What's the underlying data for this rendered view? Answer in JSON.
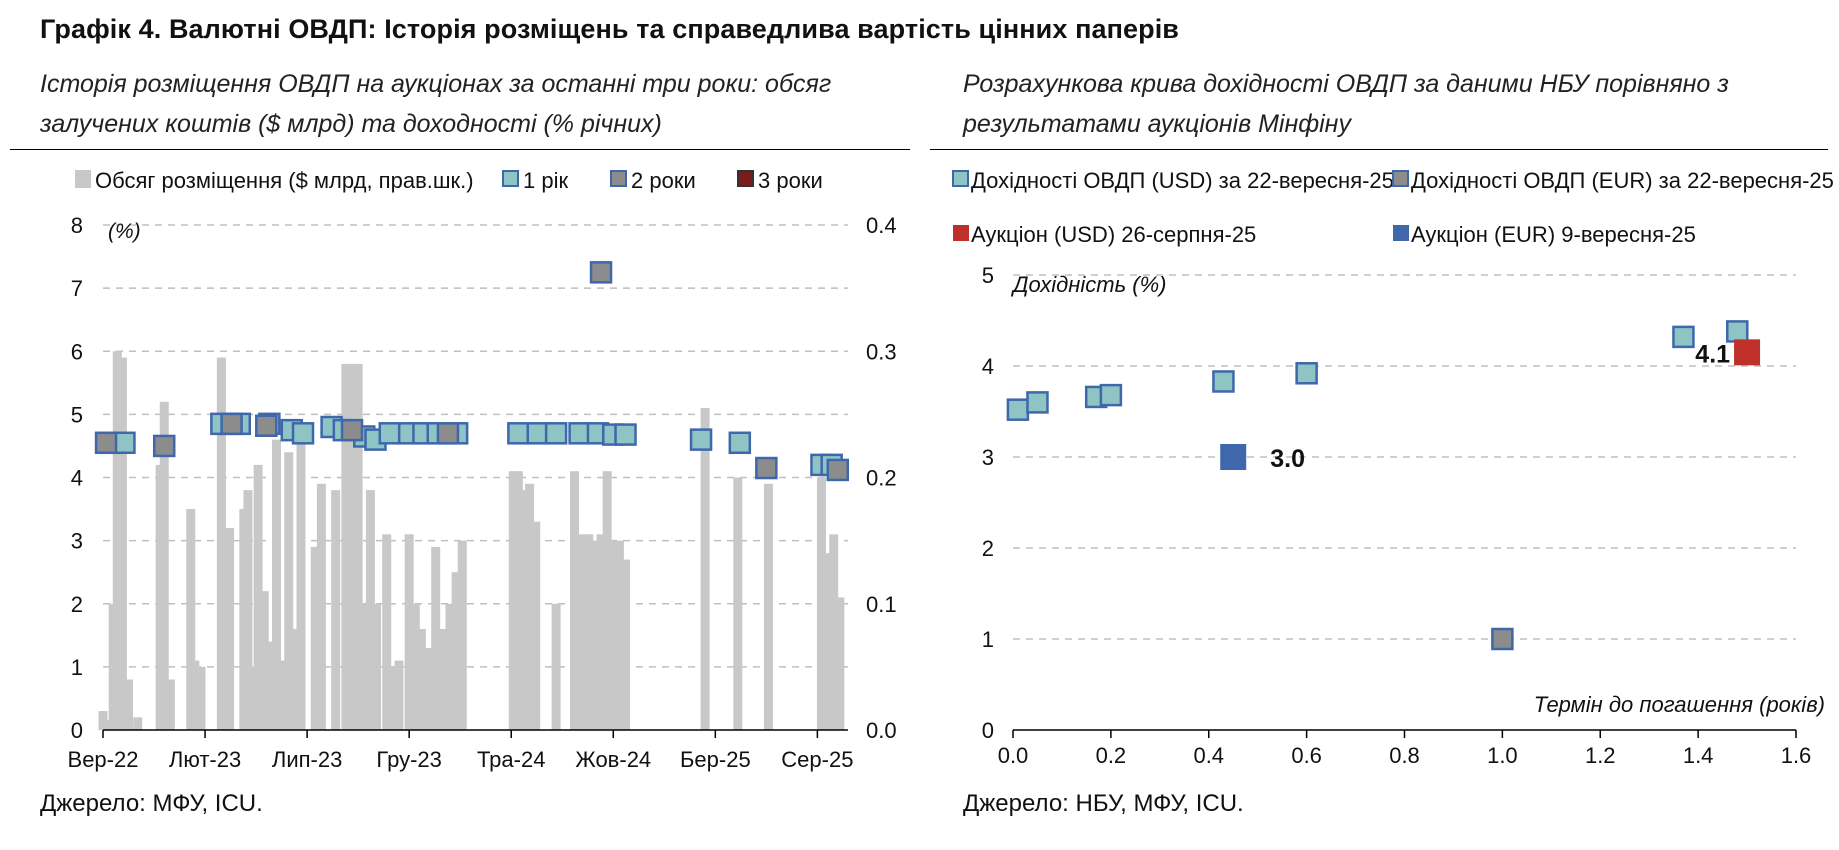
{
  "title": "Графік 4. Валютні ОВДП: Історія розміщень та справедлива вартість цінних паперів",
  "left": {
    "subtitle": "Історія розміщення ОВДП на аукціонах за останні три роки: обсяг залучених коштів ($ млрд) та доходності (% річних)",
    "source": "Джерело: МФУ, ICU.",
    "y_unit_label": "(%)"
  },
  "right": {
    "subtitle": "Розрахункова крива дохідності ОВДП за даними НБУ порівняно з результатами аукціонів Мінфіну",
    "source": "Джерело: НБУ, МФУ, ICU."
  },
  "colors": {
    "bar": "#c8c8c8",
    "usd_fill": "#8fc4c4",
    "eur_fill": "#8c8c8c",
    "marker_edge": "#3f67ab",
    "three_year_fill": "#7a1c1c",
    "auction_usd": "#c0302a",
    "auction_eur": "#3f67ab",
    "grid": "#bfbfbf"
  },
  "chart_data": [
    {
      "type": "bar+scatter",
      "xlabel": "",
      "ylabel": "(%)",
      "ylim": [
        0,
        8
      ],
      "y2lim": [
        0,
        0.4
      ],
      "yticks": [
        0,
        1,
        2,
        3,
        4,
        5,
        6,
        7,
        8
      ],
      "y2ticks": [
        "0.0",
        "0.1",
        "0.2",
        "0.3",
        "0.4"
      ],
      "xlim": [
        0,
        36.5
      ],
      "xtick_labels": [
        {
          "label": "Вер-22",
          "x": 0
        },
        {
          "label": "Лют-23",
          "x": 5
        },
        {
          "label": "Лип-23",
          "x": 10
        },
        {
          "label": "Гру-23",
          "x": 15
        },
        {
          "label": "Тра-24",
          "x": 20
        },
        {
          "label": "Жов-24",
          "x": 25
        },
        {
          "label": "Бер-25",
          "x": 30
        },
        {
          "label": "Сер-25",
          "x": 35
        }
      ],
      "grid": true,
      "legend_position": "top",
      "legend": [
        {
          "label": "Обсяг розміщення ($ млрд, прав.шк.)",
          "kind": "bar"
        },
        {
          "label": "1 рік",
          "kind": "usd"
        },
        {
          "label": "2 роки",
          "kind": "eur"
        },
        {
          "label": "3 роки",
          "kind": "three"
        }
      ],
      "bars": {
        "name": "Обсяг розміщення ($ млрд, прав.шк.)",
        "x": [
          0.0,
          0.2,
          0.5,
          0.7,
          0.95,
          1.25,
          1.7,
          2.8,
          3.0,
          3.3,
          4.3,
          4.5,
          4.8,
          5.8,
          6.0,
          6.2,
          6.9,
          7.1,
          7.3,
          7.6,
          7.9,
          8.1,
          8.5,
          8.8,
          9.1,
          9.4,
          9.7,
          10.4,
          10.7,
          11.4,
          11.9,
          12.2,
          12.5,
          12.8,
          13.1,
          13.4,
          13.9,
          14.2,
          14.5,
          15.0,
          15.3,
          15.6,
          15.9,
          16.3,
          16.6,
          17.0,
          17.3,
          17.6,
          20.1,
          20.35,
          20.6,
          20.9,
          21.2,
          22.2,
          23.1,
          23.5,
          23.8,
          24.1,
          24.4,
          24.7,
          25.0,
          25.3,
          25.6,
          29.5,
          31.1,
          32.6,
          35.2,
          35.5,
          35.8,
          36.1
        ],
        "values": [
          0.015,
          0.008,
          0.1,
          0.3,
          0.295,
          0.04,
          0.01,
          0.21,
          0.26,
          0.04,
          0.175,
          0.055,
          0.05,
          0.295,
          0.025,
          0.16,
          0.175,
          0.19,
          0.05,
          0.21,
          0.11,
          0.07,
          0.23,
          0.055,
          0.22,
          0.08,
          0.23,
          0.145,
          0.195,
          0.19,
          0.29,
          0.29,
          0.29,
          0.1,
          0.19,
          0.1,
          0.155,
          0.05,
          0.055,
          0.155,
          0.1,
          0.08,
          0.065,
          0.145,
          0.08,
          0.1,
          0.125,
          0.15,
          0.205,
          0.205,
          0.19,
          0.195,
          0.165,
          0.1,
          0.205,
          0.155,
          0.155,
          0.15,
          0.155,
          0.205,
          0.15,
          0.15,
          0.135,
          0.255,
          0.2,
          0.195,
          0.2,
          0.14,
          0.155,
          0.105
        ]
      },
      "series": [
        {
          "name": "1 рік",
          "points": [
            [
              1.05,
              4.55
            ],
            [
              5.8,
              4.85
            ],
            [
              6.7,
              4.85
            ],
            [
              8.15,
              4.85
            ],
            [
              9.25,
              4.75
            ],
            [
              9.8,
              4.7
            ],
            [
              11.2,
              4.8
            ],
            [
              11.8,
              4.75
            ],
            [
              12.8,
              4.65
            ],
            [
              13.35,
              4.6
            ],
            [
              14.05,
              4.7
            ],
            [
              15.0,
              4.7
            ],
            [
              15.7,
              4.7
            ],
            [
              16.4,
              4.7
            ],
            [
              17.35,
              4.7
            ],
            [
              20.35,
              4.7
            ],
            [
              21.3,
              4.7
            ],
            [
              22.2,
              4.7
            ],
            [
              23.35,
              4.7
            ],
            [
              24.25,
              4.7
            ],
            [
              25.0,
              4.68
            ],
            [
              25.6,
              4.68
            ],
            [
              29.3,
              4.6
            ],
            [
              31.2,
              4.55
            ],
            [
              35.2,
              4.2
            ],
            [
              35.7,
              4.2
            ]
          ]
        },
        {
          "name": "2 роки",
          "points": [
            [
              0.15,
              4.55
            ],
            [
              3.0,
              4.5
            ],
            [
              6.3,
              4.85
            ],
            [
              8.0,
              4.82
            ],
            [
              12.2,
              4.75
            ],
            [
              16.9,
              4.7
            ],
            [
              24.4,
              7.25
            ],
            [
              32.5,
              4.15
            ],
            [
              36.0,
              4.12
            ]
          ]
        },
        {
          "name": "3 роки",
          "points": []
        }
      ]
    },
    {
      "type": "scatter",
      "xlabel": "Термін до погашення (років)",
      "ylabel": "Дохідність (%)",
      "xlim": [
        0.0,
        1.6
      ],
      "ylim": [
        0,
        5
      ],
      "xticks": [
        "0.0",
        "0.2",
        "0.4",
        "0.6",
        "0.8",
        "1.0",
        "1.2",
        "1.4",
        "1.6"
      ],
      "yticks": [
        0,
        1,
        2,
        3,
        4,
        5
      ],
      "grid": true,
      "legend_position": "top",
      "series": [
        {
          "name": "Дохідності ОВДП (USD) за 22-вересня-25",
          "points": [
            [
              0.01,
              3.52
            ],
            [
              0.05,
              3.6
            ],
            [
              0.17,
              3.66
            ],
            [
              0.2,
              3.68
            ],
            [
              0.43,
              3.83
            ],
            [
              0.6,
              3.92
            ],
            [
              1.37,
              4.32
            ],
            [
              1.48,
              4.38
            ]
          ]
        },
        {
          "name": "Дохідності ОВДП (EUR) за 22-вересня-25",
          "points": [
            [
              1.0,
              1.0
            ]
          ]
        },
        {
          "name": "Аукціон (USD) 26-серпня-25",
          "points": [
            [
              1.5,
              4.15
            ]
          ],
          "label": "4.1"
        },
        {
          "name": "Аукціон (EUR) 9-вересня-25",
          "points": [
            [
              0.45,
              3.0
            ]
          ],
          "label": "3.0"
        }
      ]
    }
  ]
}
